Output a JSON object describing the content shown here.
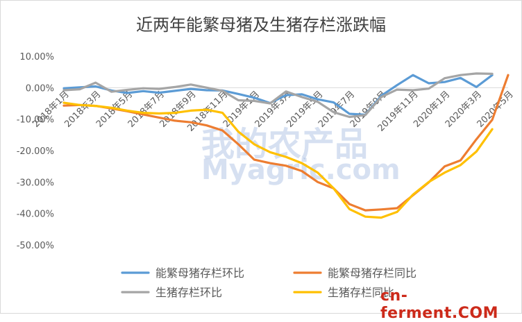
{
  "chart_data": {
    "type": "line",
    "title": "近两年能繁母猪及生猪存栏涨跌幅",
    "ylim": [
      -0.5,
      0.1
    ],
    "yticks": [
      "10.00%",
      "0.00%",
      "-10.00%",
      "-20.00%",
      "-30.00%",
      "-40.00%",
      "-50.00%"
    ],
    "ytick_values": [
      0.1,
      0.0,
      -0.1,
      -0.2,
      -0.3,
      -0.4,
      -0.5
    ],
    "xtick_labels": [
      "2018年1月",
      "2018年3月",
      "2018年5月",
      "2018年7月",
      "2018年9月",
      "2018年11月",
      "2019年1月",
      "2019年3月",
      "2019年5月",
      "2019年7月",
      "2019年9月",
      "2019年11月",
      "2020年1月",
      "2020年3月",
      "2020年5月"
    ],
    "x": [
      "2018-01",
      "2018-02",
      "2018-03",
      "2018-04",
      "2018-05",
      "2018-06",
      "2018-07",
      "2018-08",
      "2018-09",
      "2018-10",
      "2018-11",
      "2018-12",
      "2019-01",
      "2019-02",
      "2019-03",
      "2019-04",
      "2019-05",
      "2019-06",
      "2019-07",
      "2019-08",
      "2019-09",
      "2019-10",
      "2019-11",
      "2019-12",
      "2020-01",
      "2020-02",
      "2020-03",
      "2020-04",
      "2020-05"
    ],
    "series": [
      {
        "name": "能繁母猪存栏环比",
        "color": "#5b9bd5",
        "values": [
          -0.002,
          0.001,
          0.004,
          -0.009,
          -0.017,
          -0.011,
          -0.016,
          -0.01,
          -0.004,
          -0.008,
          -0.009,
          -0.02,
          -0.032,
          -0.049,
          -0.024,
          -0.021,
          -0.037,
          -0.047,
          -0.083,
          -0.086,
          -0.026,
          0.008,
          0.04,
          0.014,
          0.018,
          0.031,
          0.002,
          0.04,
          null
        ]
      },
      {
        "name": "能繁母猪存栏同比",
        "color": "#ed7d31",
        "values": [
          -0.057,
          -0.055,
          -0.058,
          -0.066,
          -0.075,
          -0.085,
          -0.095,
          -0.105,
          -0.11,
          -0.12,
          -0.136,
          -0.18,
          -0.229,
          -0.24,
          -0.248,
          -0.265,
          -0.3,
          -0.32,
          -0.37,
          -0.39,
          -0.387,
          -0.383,
          -0.342,
          -0.301,
          -0.25,
          -0.231,
          -0.164,
          -0.102,
          0.04
        ]
      },
      {
        "name": "生猪存栏环比",
        "color": "#a5a5a5",
        "values": [
          -0.008,
          -0.005,
          0.016,
          -0.013,
          -0.007,
          -0.002,
          -0.004,
          0.002,
          0.01,
          0.0,
          -0.01,
          -0.04,
          -0.042,
          -0.05,
          -0.012,
          -0.03,
          -0.045,
          -0.078,
          -0.093,
          -0.087,
          -0.03,
          -0.006,
          -0.008,
          -0.003,
          0.03,
          0.04,
          0.045,
          0.044,
          null
        ]
      },
      {
        "name": "生猪存栏同比",
        "color": "#ffc000",
        "values": [
          -0.048,
          -0.055,
          -0.058,
          -0.064,
          -0.073,
          -0.08,
          -0.082,
          -0.08,
          -0.073,
          -0.07,
          -0.08,
          -0.14,
          -0.18,
          -0.205,
          -0.22,
          -0.24,
          -0.27,
          -0.32,
          -0.386,
          -0.41,
          -0.413,
          -0.395,
          -0.34,
          -0.3,
          -0.27,
          -0.246,
          -0.203,
          -0.132,
          null
        ]
      }
    ],
    "grid": false,
    "legend": "bottom"
  },
  "watermark": {
    "cn_logo": "我的农产品",
    "en_logo": "Myagric.com",
    "site": "cn-ferment",
    "site_suffix": ".COM"
  }
}
